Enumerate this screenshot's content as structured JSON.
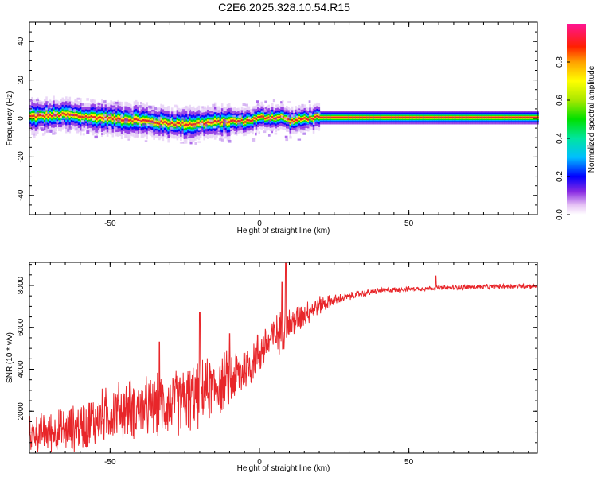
{
  "title": "C2E6.2025.328.10.54.R15",
  "colors": {
    "snr_line": "#e8262a",
    "band_core": "#e8242a"
  },
  "colorbar": {
    "label": "Normalized spectral amplitude",
    "ticks": [
      "0.0",
      "0.2",
      "0.4",
      "0.6",
      "0.8"
    ],
    "tick_values": [
      0.0,
      0.2,
      0.4,
      0.6,
      0.8
    ],
    "range": [
      0,
      1
    ]
  },
  "chart_data": [
    {
      "type": "heatmap",
      "xlabel": "Height of straight line (km)",
      "ylabel": "Frequency (Hz)",
      "xlim": [
        -77,
        93
      ],
      "ylim": [
        -50,
        50
      ],
      "x_ticks": [
        "-50",
        "0",
        "50"
      ],
      "x_tick_values": [
        -50,
        0,
        50
      ],
      "y_ticks": [
        "40",
        "20",
        "0",
        "-20",
        "-40"
      ],
      "y_tick_values": [
        40,
        20,
        0,
        -20,
        -40
      ],
      "grid": false,
      "ridge": {
        "x": [
          -77,
          -70,
          -65,
          -60,
          -55,
          -50,
          -45,
          -40,
          -35,
          -30,
          -25,
          -20,
          -15,
          -10,
          -5,
          0,
          5,
          8,
          10,
          12,
          15,
          20,
          30,
          50,
          70,
          93
        ],
        "frequency": [
          1,
          1.5,
          2,
          1,
          0.5,
          0,
          -0.5,
          -1,
          -2,
          -2.5,
          -3,
          -2.5,
          -2,
          -1.5,
          -1.5,
          0.5,
          0.5,
          0.5,
          -1.5,
          -1,
          0,
          0.5,
          0.5,
          0.5,
          0.5,
          0.5
        ]
      }
    },
    {
      "type": "line",
      "xlabel": "Height of straight line (km)",
      "ylabel": "SNR (10 * v/v)",
      "xlim": [
        -77,
        93
      ],
      "ylim": [
        0,
        9100
      ],
      "x_ticks": [
        "-50",
        "0",
        "50"
      ],
      "x_tick_values": [
        -50,
        0,
        50
      ],
      "y_ticks": [
        "2000",
        "4000",
        "6000",
        "8000"
      ],
      "y_tick_values": [
        2000,
        4000,
        6000,
        8000
      ],
      "grid": false,
      "series": [
        {
          "x": [
            -77,
            -72,
            -68,
            -64,
            -60,
            -56,
            -52,
            -48,
            -44,
            -40,
            -36,
            -32,
            -28,
            -24,
            -20,
            -16,
            -12,
            -8,
            -4,
            0,
            4,
            8,
            12,
            16,
            20,
            24,
            28,
            32,
            40,
            50,
            60,
            70,
            80,
            93
          ],
          "mean": [
            900,
            1000,
            1050,
            1100,
            1300,
            1500,
            1800,
            2000,
            2100,
            2150,
            2200,
            2300,
            2400,
            2600,
            2800,
            3100,
            3350,
            3700,
            4150,
            4800,
            5450,
            5900,
            6300,
            6750,
            7050,
            7250,
            7400,
            7550,
            7750,
            7830,
            7880,
            7920,
            7950,
            7980
          ],
          "spread": [
            700,
            800,
            850,
            900,
            1000,
            1050,
            1100,
            1150,
            1200,
            1200,
            1200,
            1250,
            1300,
            1350,
            1300,
            1250,
            1200,
            1150,
            1000,
            900,
            850,
            800,
            650,
            500,
            380,
            250,
            180,
            140,
            110,
            100,
            100,
            100,
            100,
            100
          ],
          "peaks": [
            {
              "x": -33.5,
              "y": 5300
            },
            {
              "x": -20,
              "y": 6700
            },
            {
              "x": -10,
              "y": 5700
            },
            {
              "x": 8.8,
              "y": 9050
            },
            {
              "x": 7.5,
              "y": 8150
            },
            {
              "x": 59,
              "y": 8450
            }
          ]
        }
      ]
    }
  ]
}
